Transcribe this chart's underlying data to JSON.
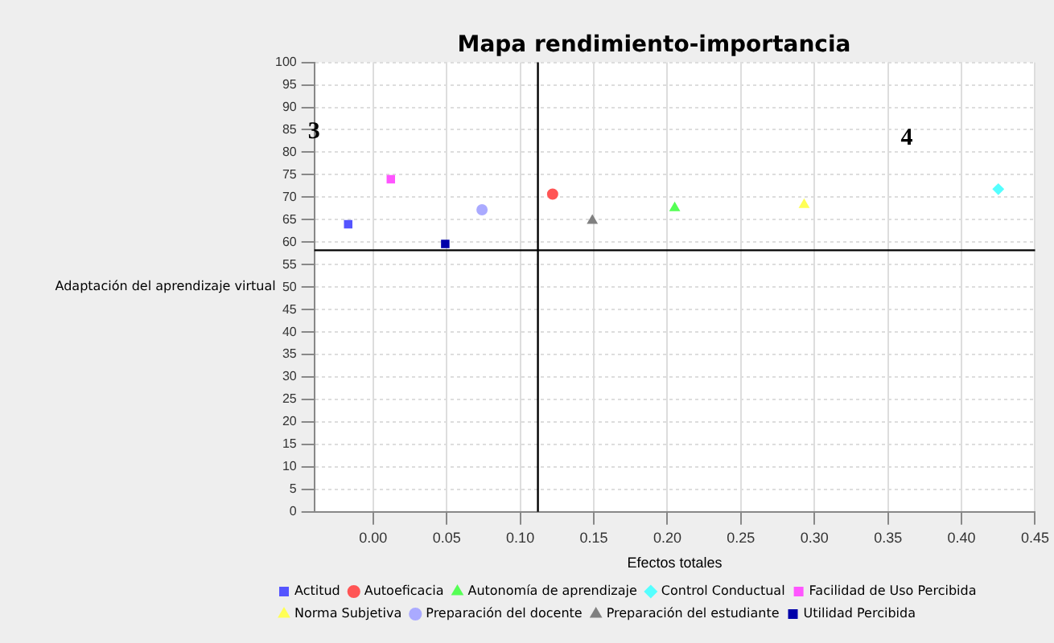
{
  "chart_data": {
    "type": "scatter",
    "title": "Mapa rendimiento-importancia",
    "xlabel": "Efectos totales",
    "ylabel": "Adaptación del aprendizaje virtual",
    "xlim": [
      -0.04,
      0.45
    ],
    "xticks": [
      {
        "value": 0,
        "label": "0.00"
      },
      {
        "value": 0.05,
        "label": "0.05"
      },
      {
        "value": 0.1,
        "label": "0.10"
      },
      {
        "value": 0.15,
        "label": "0.15"
      },
      {
        "value": 0.2,
        "label": "0.20"
      },
      {
        "value": 0.25,
        "label": "0.25"
      },
      {
        "value": 0.3,
        "label": "0.30"
      },
      {
        "value": 0.35,
        "label": "0.35"
      },
      {
        "value": 0.4,
        "label": "0.40"
      },
      {
        "value": 0.45,
        "label": "0.45"
      }
    ],
    "ylim": [
      0,
      100
    ],
    "yticks": [
      0,
      5,
      10,
      15,
      20,
      25,
      30,
      35,
      40,
      45,
      50,
      55,
      60,
      65,
      70,
      75,
      80,
      85,
      90,
      95,
      100
    ],
    "grid": true,
    "legend": "bottom",
    "series": [
      {
        "name": "Actitud",
        "color": "#5555ff",
        "marker": "square",
        "x": [
          -0.017
        ],
        "values": [
          64
        ]
      },
      {
        "name": "Autoeficacia",
        "color": "#ff5555",
        "marker": "circle",
        "x": [
          0.122
        ],
        "values": [
          70.7
        ]
      },
      {
        "name": "Autonomía de aprendizaje",
        "color": "#55ff55",
        "marker": "triangle",
        "x": [
          0.205
        ],
        "values": [
          67.6
        ]
      },
      {
        "name": "Control Conductual",
        "color": "#55ffff",
        "marker": "diamond",
        "x": [
          0.425
        ],
        "values": [
          71.8
        ]
      },
      {
        "name": "Facilidad de Uso Percibida",
        "color": "#ff55ff",
        "marker": "square",
        "x": [
          0.012
        ],
        "values": [
          74
        ]
      },
      {
        "name": "Norma Subjetiva",
        "color": "#ffff55",
        "marker": "triangle",
        "x": [
          0.293
        ],
        "values": [
          68.3
        ]
      },
      {
        "name": "Preparación del docente",
        "color": "#aaaaff",
        "marker": "circle",
        "x": [
          0.074
        ],
        "values": [
          67.2
        ]
      },
      {
        "name": "Preparación del estudiante",
        "color": "#808080",
        "marker": "triangle",
        "x": [
          0.149
        ],
        "values": [
          64.8
        ]
      },
      {
        "name": "Utilidad Percibida",
        "color": "#0000aa",
        "marker": "square",
        "x": [
          0.049
        ],
        "values": [
          59.6
        ]
      }
    ],
    "ref_lines": [
      {
        "axis": "x",
        "value": 0.112,
        "color": "#000000"
      },
      {
        "axis": "y",
        "value": 58.2,
        "color": "#000000"
      }
    ],
    "annotations": [
      "3",
      "4"
    ]
  }
}
